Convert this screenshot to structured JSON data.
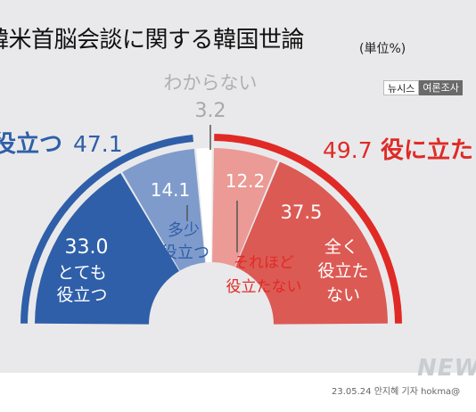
{
  "header": {
    "title": "韓米首脳会談に関する韓国世論",
    "unit": "(単位%)",
    "source_left": "뉴시스",
    "source_right": "여론조사"
  },
  "footer": {
    "credit": "23.05.24 안지혜 기자 hokma@",
    "watermark": "NEW"
  },
  "chart_data": {
    "type": "pie",
    "style": "half-donut",
    "unit": "%",
    "slices": [
      {
        "label": "とても役立つ",
        "value": 33.0,
        "color": "#2f5fa8"
      },
      {
        "label": "多少役立つ",
        "value": 14.1,
        "color": "#7f9bcc"
      },
      {
        "label": "わからない",
        "value": 3.2,
        "color": "#ffffff"
      },
      {
        "label": "それほど役立たない",
        "value": 12.2,
        "color": "#eb9a95"
      },
      {
        "label": "全く役立たない",
        "value": 37.5,
        "color": "#dc5a54"
      }
    ],
    "groups": [
      {
        "label": "役立つ",
        "value": 47.1,
        "color": "#2f5fa8"
      },
      {
        "label": "役に立た",
        "value": 49.7,
        "color": "#e02a26"
      }
    ]
  }
}
